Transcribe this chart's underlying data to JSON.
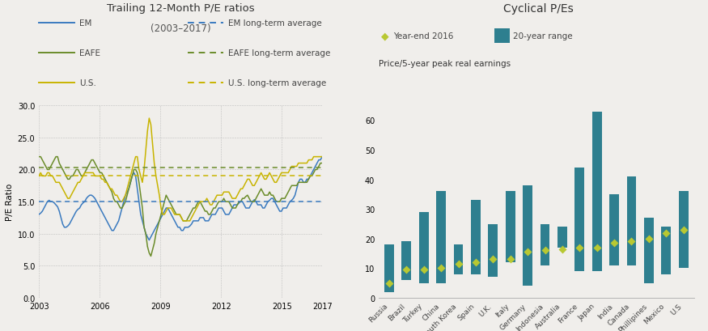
{
  "left_title": "Trailing 12-Month P/E ratios",
  "left_subtitle": "(2003–2017)",
  "left_ylabel": "P/E Ratio",
  "left_xlim": [
    2003,
    2017
  ],
  "left_ylim": [
    0,
    30
  ],
  "left_yticks": [
    0.0,
    5.0,
    10.0,
    15.0,
    20.0,
    25.0,
    30.0
  ],
  "left_xticks": [
    2003,
    2006,
    2009,
    2012,
    2015,
    2017
  ],
  "em_avg": 15.0,
  "eafe_avg": 20.3,
  "us_avg": 19.0,
  "em_color": "#3a7abf",
  "eafe_color": "#6b8c2a",
  "us_color": "#c8b400",
  "bg_color": "#f0eeeb",
  "right_title": "Cyclical P/Es",
  "right_ylabel": "Price/5-year peak real earnings",
  "bar_color": "#2e7f8f",
  "diamond_color": "#b8c832",
  "countries": [
    "Russia",
    "Brazil",
    "Turkey",
    "China",
    "South Korea",
    "Spain",
    "U.K.",
    "Italy",
    "Germany",
    "Indonesia",
    "Australia",
    "France",
    "Japan",
    "India",
    "Canada",
    "Phillipines",
    "Mexico",
    "U.S"
  ],
  "bar_low": [
    2,
    6,
    5,
    5,
    8,
    8,
    7,
    12,
    4,
    11,
    17,
    9,
    9,
    11,
    11,
    5,
    8,
    10
  ],
  "bar_high": [
    18,
    19,
    29,
    36,
    18,
    33,
    25,
    36,
    38,
    25,
    24,
    44,
    63,
    35,
    41,
    27,
    24,
    36
  ],
  "diamond_vals": [
    5,
    9.5,
    9.5,
    10,
    11.5,
    12,
    13,
    13,
    15.5,
    16,
    16.5,
    17,
    17,
    18.5,
    19,
    20,
    22,
    23
  ]
}
